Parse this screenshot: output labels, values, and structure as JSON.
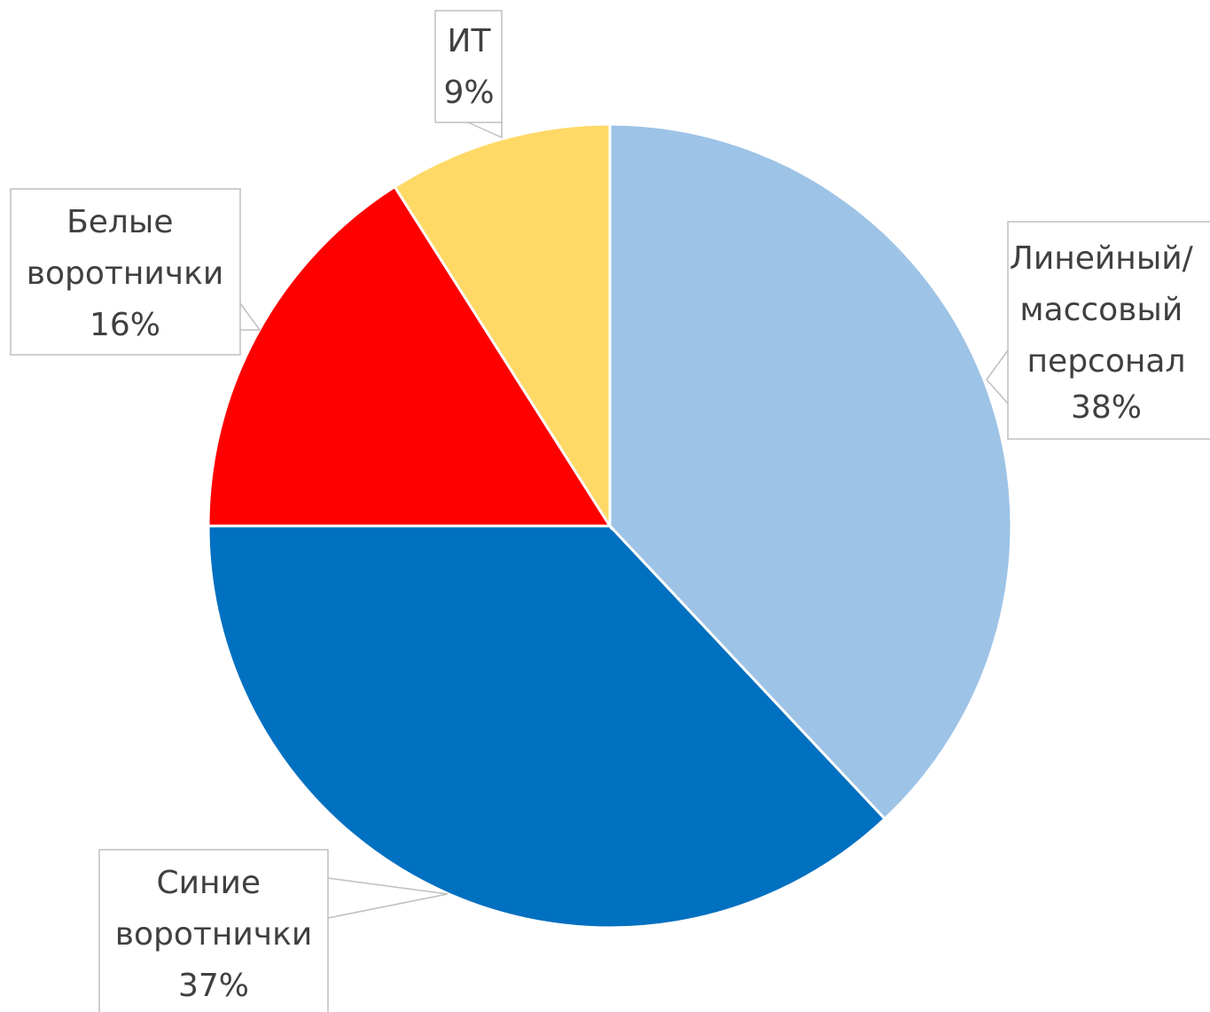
{
  "chart_data": {
    "type": "pie",
    "categories": [
      "Линейный/ массовый персонал",
      "Синие воротнички",
      "Белые воротнички",
      "ИТ"
    ],
    "values": [
      38,
      37,
      16,
      9
    ],
    "value_labels": [
      "38%",
      "37%",
      "16%",
      "9%"
    ],
    "colors": [
      "#9dc3e6",
      "#0070c0",
      "#ff0000",
      "#ffd966"
    ]
  }
}
